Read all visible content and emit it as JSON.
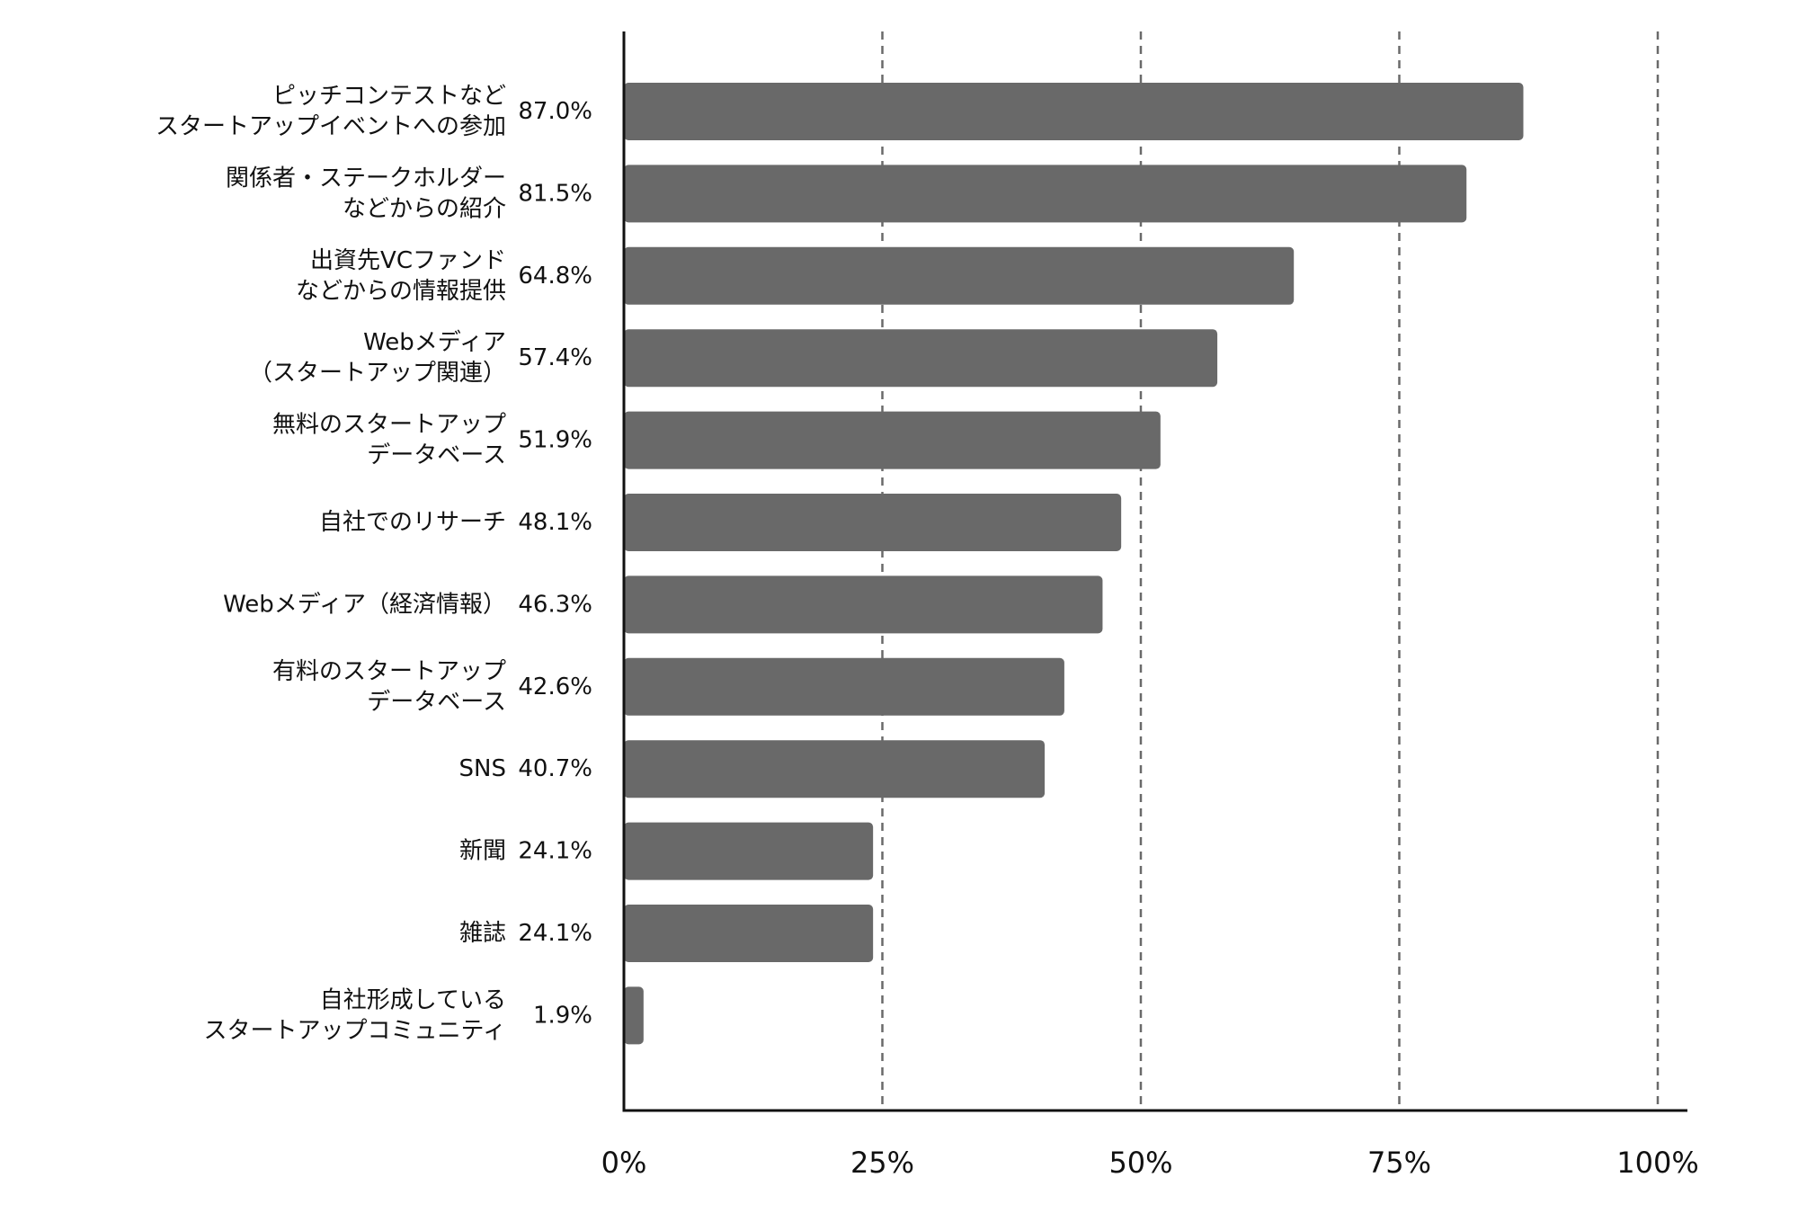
{
  "colors": {
    "bar": "#696969",
    "axis": "#111111",
    "grid": "#6a6a6a",
    "text": "#111111",
    "background": "#ffffff"
  },
  "chart_data": {
    "type": "bar",
    "orientation": "horizontal",
    "title": "",
    "xlabel": "",
    "ylabel": "",
    "xlim": [
      0,
      100
    ],
    "grid": "vertical dashed at 25%, 50%, 75%, 100%",
    "legend": "none",
    "x_ticks": [
      {
        "value": 0,
        "label": "0%"
      },
      {
        "value": 25,
        "label": "25%"
      },
      {
        "value": 50,
        "label": "50%"
      },
      {
        "value": 75,
        "label": "75%"
      },
      {
        "value": 100,
        "label": "100%"
      }
    ],
    "categories": [
      {
        "lines": [
          "ピッチコンテストなど",
          "スタートアップイベントへの参加"
        ],
        "value": 87.0,
        "label": "87.0%"
      },
      {
        "lines": [
          "関係者・ステークホルダー",
          "などからの紹介"
        ],
        "value": 81.5,
        "label": "81.5%"
      },
      {
        "lines": [
          "出資先VCファンド",
          "などからの情報提供"
        ],
        "value": 64.8,
        "label": "64.8%"
      },
      {
        "lines": [
          "Webメディア",
          "（スタートアップ関連）"
        ],
        "value": 57.4,
        "label": "57.4%"
      },
      {
        "lines": [
          "無料のスタートアップ",
          "データベース"
        ],
        "value": 51.9,
        "label": "51.9%"
      },
      {
        "lines": [
          "自社でのリサーチ"
        ],
        "value": 48.1,
        "label": "48.1%"
      },
      {
        "lines": [
          "Webメディア（経済情報）"
        ],
        "value": 46.3,
        "label": "46.3%"
      },
      {
        "lines": [
          "有料のスタートアップ",
          "データベース"
        ],
        "value": 42.6,
        "label": "42.6%"
      },
      {
        "lines": [
          "SNS"
        ],
        "value": 40.7,
        "label": "40.7%"
      },
      {
        "lines": [
          "新聞"
        ],
        "value": 24.1,
        "label": "24.1%"
      },
      {
        "lines": [
          "雑誌"
        ],
        "value": 24.1,
        "label": "24.1%"
      },
      {
        "lines": [
          "自社形成している",
          "スタートアップコミュニティ"
        ],
        "value": 1.9,
        "label": "1.9%"
      }
    ]
  }
}
